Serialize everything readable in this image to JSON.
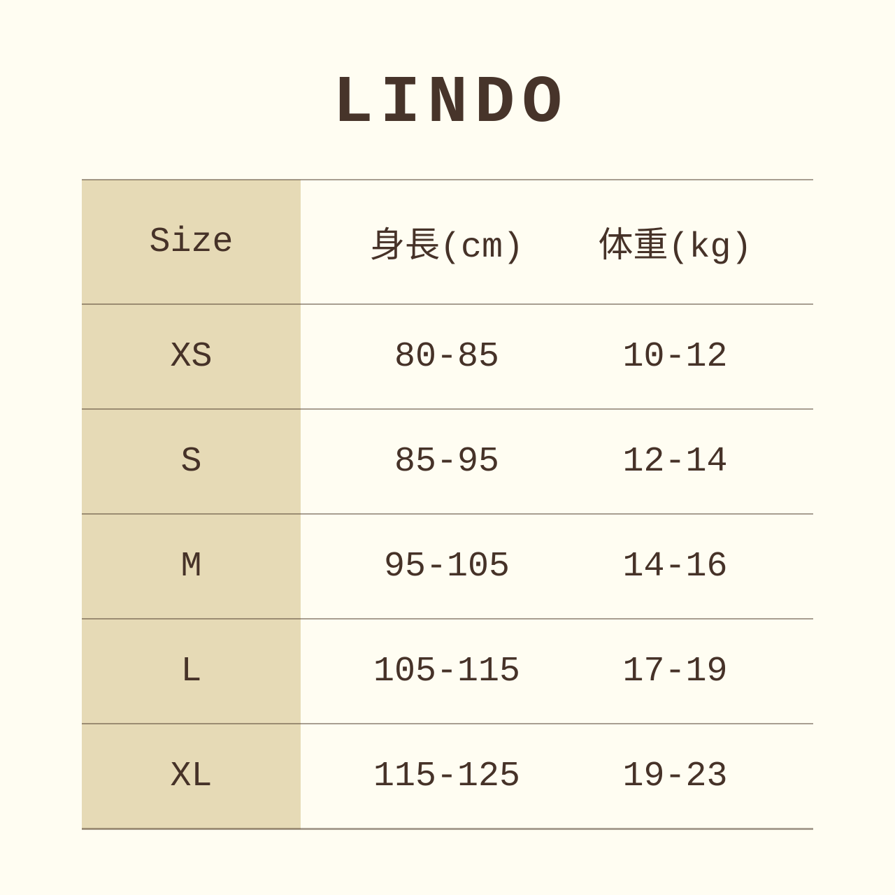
{
  "brand": {
    "title": "LINDO"
  },
  "colors": {
    "background": "#fffdf2",
    "size_column_fill": "#e6dab6",
    "text": "#463228",
    "rule_line": "#a89e91"
  },
  "chart_data": {
    "type": "table",
    "title": "LINDO",
    "columns": [
      "Size",
      "身長(cm)",
      "体重(kg)"
    ],
    "rows": [
      [
        "XS",
        "80-85",
        "10-12"
      ],
      [
        "S",
        "85-95",
        "12-14"
      ],
      [
        "M",
        "95-105",
        "14-16"
      ],
      [
        "L",
        "105-115",
        "17-19"
      ],
      [
        "XL",
        "115-125",
        "19-23"
      ]
    ],
    "layout": {
      "grid": "horizontal rules only",
      "first_column_highlight": true,
      "header_position": "top row"
    }
  }
}
